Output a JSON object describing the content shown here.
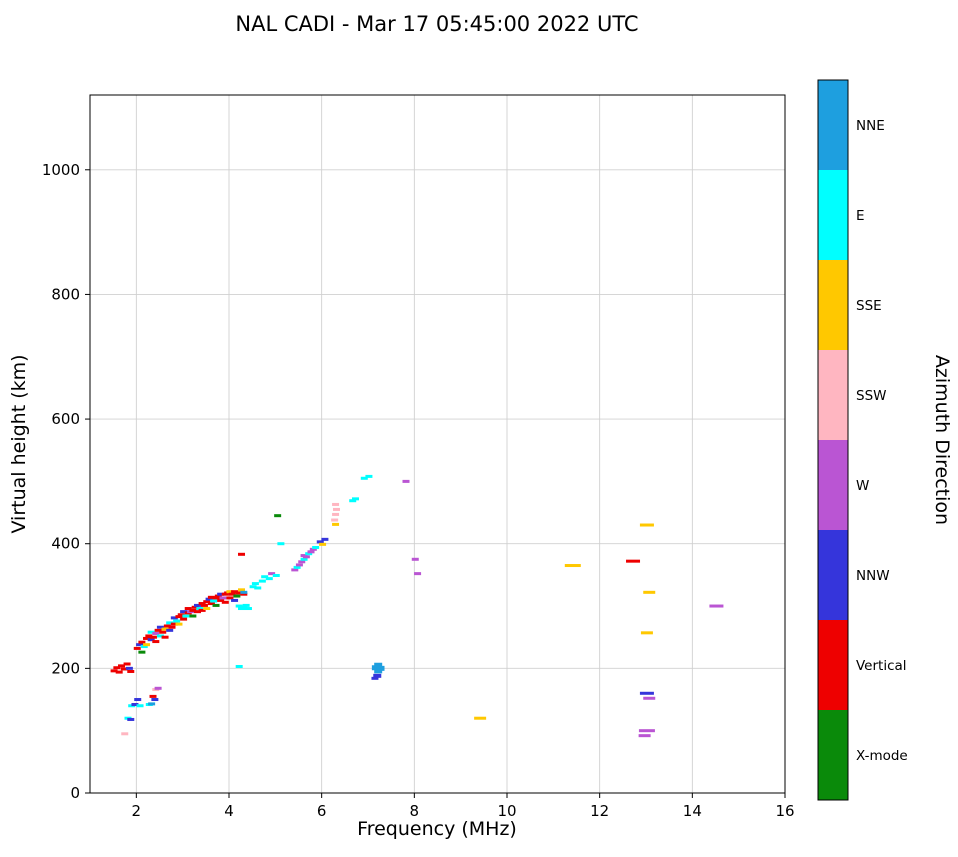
{
  "chart_data": {
    "type": "scatter",
    "title": "NAL CADI - Mar 17 05:45:00 2022 UTC",
    "xlabel": "Frequency (MHz)",
    "ylabel": "Virtual height (km)",
    "xlim": [
      1,
      16
    ],
    "ylim": [
      0,
      1120
    ],
    "xticks": [
      2,
      4,
      6,
      8,
      10,
      12,
      14,
      16
    ],
    "yticks": [
      0,
      200,
      400,
      600,
      800,
      1000
    ],
    "grid": true,
    "colorbar": {
      "label": "Azimuth Direction",
      "segments_top_to_bottom": [
        {
          "label": "NNE",
          "color": "#1E9FDF"
        },
        {
          "label": "E",
          "color": "#00FFFF"
        },
        {
          "label": "SSE",
          "color": "#FFC800"
        },
        {
          "label": "SSW",
          "color": "#FFB6C1"
        },
        {
          "label": "W",
          "color": "#BA55D3"
        },
        {
          "label": "NNW",
          "color": "#3535DB"
        },
        {
          "label": "Vertical",
          "color": "#EE0000"
        },
        {
          "label": "X-mode",
          "color": "#0A8A0A"
        }
      ]
    },
    "point_format": "[frequency_MHz, virtual_height_km, direction_index, optional_marker_w_px, optional_marker_h_px]",
    "points": [
      [
        1.52,
        196,
        6
      ],
      [
        1.58,
        201,
        6
      ],
      [
        1.63,
        194,
        6
      ],
      [
        1.68,
        204,
        6
      ],
      [
        1.74,
        199,
        6
      ],
      [
        1.8,
        207,
        6
      ],
      [
        1.85,
        200,
        5
      ],
      [
        1.88,
        195,
        6
      ],
      [
        1.75,
        95,
        3
      ],
      [
        1.82,
        120,
        1
      ],
      [
        1.88,
        118,
        5
      ],
      [
        1.9,
        140,
        1
      ],
      [
        1.97,
        142,
        5
      ],
      [
        2.03,
        150,
        5
      ],
      [
        2.08,
        140,
        1
      ],
      [
        2.28,
        142,
        1
      ],
      [
        2.33,
        143,
        0
      ],
      [
        2.36,
        155,
        6
      ],
      [
        2.42,
        166,
        3
      ],
      [
        2.47,
        168,
        4
      ],
      [
        2.4,
        150,
        5
      ],
      [
        2.02,
        232,
        6
      ],
      [
        2.07,
        238,
        5
      ],
      [
        2.12,
        242,
        6
      ],
      [
        2.12,
        226,
        7
      ],
      [
        2.17,
        235,
        1
      ],
      [
        2.22,
        248,
        6
      ],
      [
        2.22,
        238,
        2
      ],
      [
        2.27,
        252,
        6
      ],
      [
        2.32,
        246,
        5
      ],
      [
        2.32,
        258,
        1
      ],
      [
        2.37,
        250,
        6
      ],
      [
        2.42,
        256,
        4
      ],
      [
        2.42,
        243,
        6
      ],
      [
        2.47,
        261,
        6
      ],
      [
        2.52,
        252,
        1
      ],
      [
        2.52,
        266,
        5
      ],
      [
        2.57,
        258,
        6
      ],
      [
        2.62,
        263,
        2
      ],
      [
        2.62,
        250,
        6
      ],
      [
        2.67,
        268,
        6
      ],
      [
        2.72,
        261,
        5
      ],
      [
        2.72,
        273,
        1
      ],
      [
        2.77,
        266,
        6
      ],
      [
        2.82,
        271,
        6
      ],
      [
        2.82,
        281,
        5
      ],
      [
        2.87,
        276,
        1
      ],
      [
        2.92,
        283,
        6
      ],
      [
        2.92,
        271,
        2
      ],
      [
        2.97,
        286,
        6
      ],
      [
        3.02,
        279,
        6
      ],
      [
        3.02,
        291,
        5
      ],
      [
        3.07,
        284,
        1
      ],
      [
        3.12,
        289,
        6
      ],
      [
        3.12,
        296,
        6
      ],
      [
        3.17,
        291,
        4
      ],
      [
        3.22,
        293,
        6
      ],
      [
        3.22,
        284,
        7
      ],
      [
        3.27,
        298,
        6
      ],
      [
        3.32,
        291,
        6
      ],
      [
        3.32,
        301,
        5
      ],
      [
        3.37,
        296,
        1
      ],
      [
        3.42,
        304,
        6
      ],
      [
        3.42,
        293,
        6
      ],
      [
        3.47,
        301,
        6
      ],
      [
        3.52,
        307,
        6
      ],
      [
        3.52,
        296,
        2
      ],
      [
        3.57,
        311,
        5
      ],
      [
        3.62,
        304,
        6
      ],
      [
        3.62,
        314,
        6
      ],
      [
        3.67,
        308,
        1
      ],
      [
        3.72,
        313,
        6
      ],
      [
        3.72,
        301,
        7
      ],
      [
        3.77,
        316,
        6
      ],
      [
        3.82,
        309,
        6
      ],
      [
        3.82,
        319,
        5
      ],
      [
        3.87,
        313,
        4
      ],
      [
        3.92,
        319,
        6
      ],
      [
        3.92,
        306,
        6
      ],
      [
        3.97,
        321,
        6
      ],
      [
        4.02,
        313,
        6
      ],
      [
        4.02,
        323,
        2
      ],
      [
        4.07,
        319,
        6
      ],
      [
        4.12,
        323,
        6
      ],
      [
        4.12,
        309,
        5
      ],
      [
        4.17,
        316,
        7
      ],
      [
        4.22,
        321,
        6
      ],
      [
        4.27,
        326,
        2
      ],
      [
        4.32,
        319,
        6
      ],
      [
        4.22,
        300,
        1
      ],
      [
        4.27,
        296,
        1
      ],
      [
        4.32,
        298,
        1
      ],
      [
        4.37,
        301,
        1
      ],
      [
        4.42,
        296,
        1
      ],
      [
        4.32,
        322,
        0
      ],
      [
        4.22,
        203,
        1
      ],
      [
        4.27,
        383,
        6
      ],
      [
        5.05,
        445,
        7
      ],
      [
        4.52,
        331,
        1
      ],
      [
        4.57,
        336,
        1
      ],
      [
        4.62,
        329,
        1
      ],
      [
        4.72,
        340,
        1
      ],
      [
        4.77,
        347,
        1
      ],
      [
        4.87,
        344,
        1
      ],
      [
        4.92,
        352,
        4
      ],
      [
        5.02,
        349,
        1
      ],
      [
        5.12,
        400,
        1
      ],
      [
        5.42,
        358,
        4
      ],
      [
        5.47,
        362,
        1
      ],
      [
        5.52,
        366,
        4
      ],
      [
        5.57,
        371,
        4
      ],
      [
        5.62,
        375,
        1
      ],
      [
        5.62,
        381,
        4
      ],
      [
        5.67,
        379,
        4
      ],
      [
        5.72,
        384,
        1
      ],
      [
        5.77,
        387,
        4
      ],
      [
        5.82,
        391,
        4
      ],
      [
        5.87,
        394,
        1
      ],
      [
        5.97,
        403,
        5
      ],
      [
        6.07,
        407,
        5
      ],
      [
        6.02,
        399,
        2
      ],
      [
        6.28,
        438,
        3
      ],
      [
        6.3,
        447,
        3
      ],
      [
        6.32,
        455,
        3
      ],
      [
        6.3,
        463,
        3
      ],
      [
        6.3,
        431,
        2
      ],
      [
        6.67,
        469,
        1
      ],
      [
        6.73,
        472,
        1
      ],
      [
        6.92,
        505,
        1
      ],
      [
        7.02,
        508,
        1
      ],
      [
        7.17,
        201,
        0,
        8,
        5
      ],
      [
        7.22,
        205,
        0,
        8,
        5
      ],
      [
        7.22,
        196,
        0,
        8,
        5
      ],
      [
        7.27,
        200,
        0,
        8,
        5
      ],
      [
        7.2,
        188,
        5,
        8,
        4
      ],
      [
        7.15,
        184,
        5,
        7,
        3
      ],
      [
        7.82,
        500,
        4
      ],
      [
        8.02,
        375,
        4
      ],
      [
        8.07,
        352,
        4
      ],
      [
        9.42,
        120,
        2,
        12
      ],
      [
        11.42,
        365,
        2,
        16
      ],
      [
        12.72,
        372,
        6,
        14
      ],
      [
        13.02,
        430,
        2,
        14
      ],
      [
        13.07,
        322,
        2,
        12
      ],
      [
        13.02,
        257,
        2,
        12
      ],
      [
        13.02,
        160,
        5,
        14
      ],
      [
        13.07,
        152,
        4,
        12
      ],
      [
        13.02,
        100,
        4,
        16
      ],
      [
        12.97,
        92,
        4,
        12
      ],
      [
        14.52,
        300,
        4,
        14
      ]
    ]
  }
}
